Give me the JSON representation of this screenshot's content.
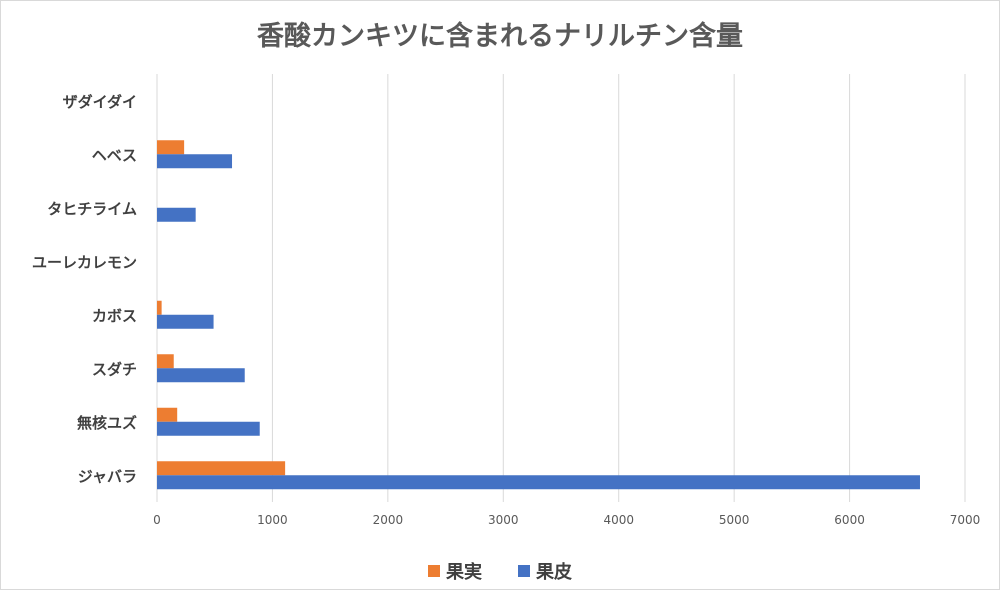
{
  "chart_data": {
    "type": "bar",
    "orientation": "horizontal",
    "title": "香酸カンキツに含まれるナリルチン含量",
    "categories": [
      "ジャバラ",
      "無核ユズ",
      "スダチ",
      "カボス",
      "ユーレカレモン",
      "タヒチライム",
      "ヘベス",
      "ザダイダイ"
    ],
    "series": [
      {
        "name": "果実",
        "color": "#ED7D31",
        "values": [
          1110,
          175,
          145,
          40,
          0,
          0,
          235,
          0
        ]
      },
      {
        "name": "果皮",
        "color": "#4472C4",
        "values": [
          6610,
          890,
          760,
          490,
          0,
          335,
          650,
          0
        ]
      }
    ],
    "xlim": [
      0,
      7000
    ],
    "xticks": [
      0,
      1000,
      2000,
      3000,
      4000,
      5000,
      6000,
      7000
    ],
    "grid": true,
    "legend_position": "bottom"
  }
}
